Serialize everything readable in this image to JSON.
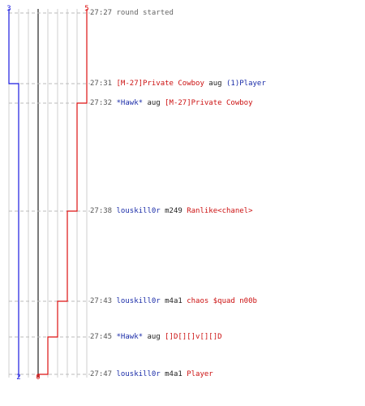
{
  "scoreboard": {
    "blue_team": {
      "start_count": "3",
      "end_count": "2",
      "color": "#1a1ae0"
    },
    "red_team": {
      "start_count": "5",
      "end_count": "0",
      "color": "#dd1111"
    }
  },
  "events": [
    {
      "time": "27:27",
      "parts": [
        {
          "text": "round started",
          "tone": "gray"
        }
      ]
    },
    {
      "time": "27:31",
      "parts": [
        {
          "text": "[M-27]Private Cowboy",
          "tone": "red"
        },
        {
          "text": " aug ",
          "tone": "dark"
        },
        {
          "text": "(1)Player",
          "tone": "blue"
        }
      ]
    },
    {
      "time": "27:32",
      "parts": [
        {
          "text": "*Hawk*",
          "tone": "blue"
        },
        {
          "text": " aug ",
          "tone": "dark"
        },
        {
          "text": "[M-27]Private Cowboy",
          "tone": "red"
        }
      ]
    },
    {
      "time": "27:38",
      "parts": [
        {
          "text": "louskill0r",
          "tone": "blue"
        },
        {
          "text": " m249 ",
          "tone": "dark"
        },
        {
          "text": "Ranlike<chanel>",
          "tone": "red"
        }
      ]
    },
    {
      "time": "27:43",
      "parts": [
        {
          "text": "louskill0r",
          "tone": "blue"
        },
        {
          "text": " m4a1 ",
          "tone": "dark"
        },
        {
          "text": "chaos $quad n00b",
          "tone": "red"
        }
      ]
    },
    {
      "time": "27:45",
      "parts": [
        {
          "text": "*Hawk*",
          "tone": "blue"
        },
        {
          "text": " aug ",
          "tone": "dark"
        },
        {
          "text": "[]D[][]v[][]D",
          "tone": "red"
        }
      ]
    },
    {
      "time": "27:47",
      "parts": [
        {
          "text": "louskill0r",
          "tone": "blue"
        },
        {
          "text": " m4a1 ",
          "tone": "dark"
        },
        {
          "text": "Player",
          "tone": "red"
        }
      ]
    }
  ],
  "chart_data": {
    "type": "line",
    "x": [
      "27:27",
      "27:31",
      "27:32",
      "27:38",
      "27:43",
      "27:45",
      "27:47"
    ],
    "series": [
      {
        "team": "blue",
        "values": [
          3,
          2,
          2,
          2,
          2,
          2,
          2
        ]
      },
      {
        "team": "red",
        "values": [
          5,
          5,
          4,
          3,
          2,
          1,
          0
        ]
      }
    ],
    "ylim": [
      0,
      5
    ]
  }
}
